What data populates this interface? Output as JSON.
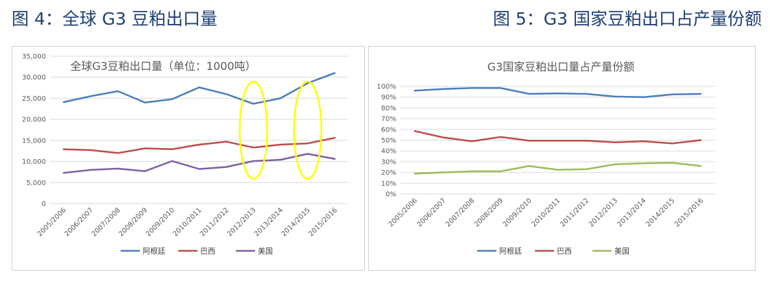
{
  "headings": {
    "left": "图 4：全球 G3 豆粕出口量",
    "right": "图 5：G3 国家豆粕出口占产量份额"
  },
  "chart_data": [
    {
      "type": "line",
      "title": "全球G3豆粕出口量（单位：1000吨）",
      "categories": [
        "2005/2006",
        "2006/2007",
        "2007/2008",
        "2008/2009",
        "2009/2010",
        "2010/2011",
        "2011/2012",
        "2012/2013",
        "2013/2014",
        "2014/2015",
        "2015/2016"
      ],
      "series": [
        {
          "name": "阿根廷",
          "color": "#4a7ebb",
          "values": [
            24100,
            25500,
            26700,
            24000,
            24800,
            27600,
            26000,
            23700,
            25000,
            28600,
            31000
          ]
        },
        {
          "name": "巴西",
          "color": "#be4b48",
          "values": [
            12900,
            12700,
            12000,
            13100,
            12900,
            14000,
            14700,
            13300,
            14000,
            14300,
            15600
          ]
        },
        {
          "name": "美国",
          "color": "#7d60a0",
          "values": [
            7300,
            8000,
            8300,
            7700,
            10100,
            8200,
            8700,
            10100,
            10400,
            11800,
            10600
          ]
        }
      ],
      "y_ticks": [
        "35,000",
        "30,000",
        "25,000",
        "20,000",
        "15,000",
        "10,000",
        "5,000",
        "0"
      ],
      "ylim": [
        0,
        35000
      ],
      "grid": true,
      "legend": "bottom",
      "annotations": [
        {
          "type": "ellipse",
          "color": "#ffff00",
          "around": "2012/2013"
        },
        {
          "type": "ellipse",
          "color": "#ffff00",
          "around": "2014/2015"
        }
      ]
    },
    {
      "type": "line",
      "title": "G3国家豆粕出口量占产量份额",
      "categories": [
        "2005/2006",
        "2006/2007",
        "2007/2008",
        "2008/2009",
        "2009/2010",
        "2010/2011",
        "2011/2012",
        "2012/2013",
        "2013/2014",
        "2014/2015",
        "2015/2016"
      ],
      "series": [
        {
          "name": "阿根廷",
          "color": "#4a7ebb",
          "values": [
            96,
            97.5,
            98.5,
            98.5,
            93,
            93.5,
            93,
            90.5,
            90,
            92.5,
            93
          ]
        },
        {
          "name": "巴西",
          "color": "#be4b48",
          "values": [
            58.5,
            52.5,
            49,
            53,
            49.5,
            49.5,
            49.5,
            48,
            49,
            47,
            50
          ]
        },
        {
          "name": "美国",
          "color": "#9bbb59",
          "values": [
            19,
            20,
            21,
            21,
            26,
            22.5,
            23,
            27.5,
            28.5,
            29,
            26
          ]
        }
      ],
      "y_ticks": [
        "100%",
        "90%",
        "80%",
        "70%",
        "60%",
        "50%",
        "40%",
        "30%",
        "20%",
        "10%",
        "0%"
      ],
      "ylim": [
        0,
        100
      ],
      "grid": true,
      "legend": "bottom"
    }
  ]
}
